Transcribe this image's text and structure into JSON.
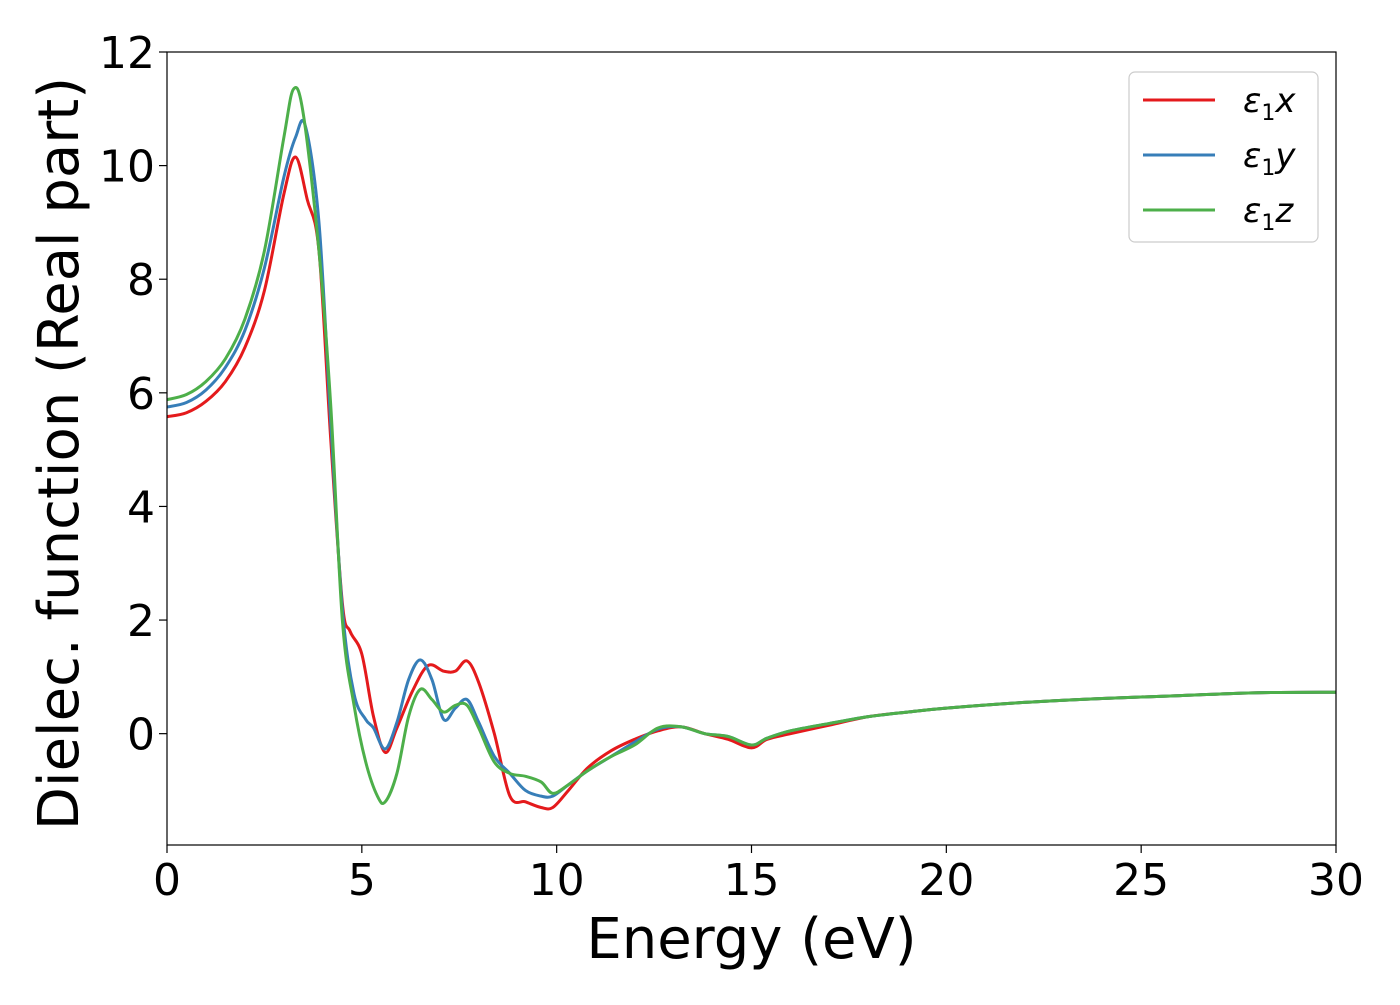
{
  "chart_data": {
    "type": "line",
    "title": "",
    "xlabel": "Energy (eV)",
    "ylabel": "Dielec. function (Real part)",
    "xlim": [
      0,
      30
    ],
    "ylim": [
      -1.96,
      12
    ],
    "xticks": [
      0,
      5,
      10,
      15,
      20,
      25,
      30
    ],
    "yticks": [
      0,
      2,
      4,
      6,
      8,
      10,
      12
    ],
    "grid": false,
    "legend_position": "top-right",
    "series": [
      {
        "name": "ε1x",
        "legend_base": "ε",
        "legend_sub": "1",
        "legend_var": "x",
        "color": "#e41a1c",
        "x": [
          0,
          0.5,
          1,
          1.5,
          2,
          2.5,
          3,
          3.3,
          3.6,
          3.9,
          4.2,
          4.5,
          4.7,
          5.0,
          5.3,
          5.6,
          5.9,
          6.3,
          6.7,
          7.1,
          7.4,
          7.7,
          8.0,
          8.4,
          8.8,
          9.2,
          9.6,
          9.9,
          10.3,
          10.8,
          11.4,
          12.0,
          12.6,
          13.2,
          13.8,
          14.4,
          15.0,
          15.4,
          16.0,
          17.0,
          18.0,
          19.0,
          20.0,
          22.0,
          24.0,
          26.0,
          28.0,
          30.0
        ],
        "y": [
          5.58,
          5.65,
          5.85,
          6.2,
          6.8,
          7.8,
          9.5,
          10.15,
          9.4,
          8.5,
          5.2,
          2.3,
          1.8,
          1.4,
          0.3,
          -0.33,
          0.1,
          0.75,
          1.2,
          1.1,
          1.1,
          1.28,
          0.9,
          0.0,
          -1.1,
          -1.2,
          -1.3,
          -1.3,
          -1.0,
          -0.6,
          -0.3,
          -0.1,
          0.05,
          0.12,
          0.0,
          -0.1,
          -0.25,
          -0.1,
          0.0,
          0.15,
          0.3,
          0.38,
          0.45,
          0.55,
          0.62,
          0.67,
          0.72,
          0.73
        ]
      },
      {
        "name": "ε1y",
        "legend_base": "ε",
        "legend_sub": "1",
        "legend_var": "y",
        "color": "#377eb8",
        "x": [
          0,
          0.5,
          1,
          1.5,
          2,
          2.5,
          3,
          3.3,
          3.55,
          3.9,
          4.2,
          4.5,
          4.8,
          5.1,
          5.3,
          5.6,
          5.9,
          6.2,
          6.5,
          6.8,
          7.1,
          7.4,
          7.7,
          8.0,
          8.4,
          8.8,
          9.2,
          9.6,
          9.9,
          10.3,
          10.8,
          11.4,
          12.0,
          12.6,
          13.2,
          13.8,
          14.4,
          15.0,
          15.4,
          16.0,
          17.0,
          18.0,
          19.0,
          20.0,
          22.0,
          24.0,
          26.0,
          28.0,
          30.0
        ],
        "y": [
          5.75,
          5.83,
          6.05,
          6.45,
          7.1,
          8.2,
          9.8,
          10.5,
          10.7,
          9.0,
          5.5,
          2.2,
          0.7,
          0.25,
          0.1,
          -0.27,
          0.2,
          0.95,
          1.3,
          0.95,
          0.25,
          0.45,
          0.6,
          0.2,
          -0.4,
          -0.7,
          -1.0,
          -1.1,
          -1.1,
          -0.9,
          -0.65,
          -0.4,
          -0.15,
          0.08,
          0.12,
          0.0,
          -0.05,
          -0.2,
          -0.08,
          0.05,
          0.18,
          0.3,
          0.38,
          0.45,
          0.55,
          0.62,
          0.67,
          0.72,
          0.73
        ]
      },
      {
        "name": "ε1z",
        "legend_base": "ε",
        "legend_sub": "1",
        "legend_var": "z",
        "color": "#4daf4a",
        "x": [
          0,
          0.5,
          1,
          1.5,
          2,
          2.5,
          3,
          3.25,
          3.5,
          3.9,
          4.2,
          4.5,
          4.8,
          5.1,
          5.4,
          5.6,
          5.9,
          6.2,
          6.5,
          6.8,
          7.1,
          7.4,
          7.7,
          8.0,
          8.4,
          8.8,
          9.2,
          9.6,
          9.9,
          10.3,
          10.8,
          11.4,
          12.0,
          12.6,
          13.2,
          13.8,
          14.4,
          15.0,
          15.4,
          16.0,
          17.0,
          18.0,
          19.0,
          20.0,
          22.0,
          24.0,
          26.0,
          28.0,
          30.0
        ],
        "y": [
          5.88,
          5.97,
          6.2,
          6.6,
          7.3,
          8.5,
          10.5,
          11.35,
          10.9,
          8.5,
          5.8,
          2.0,
          0.5,
          -0.5,
          -1.1,
          -1.2,
          -0.7,
          0.3,
          0.78,
          0.6,
          0.38,
          0.5,
          0.5,
          0.1,
          -0.5,
          -0.7,
          -0.75,
          -0.85,
          -1.05,
          -0.9,
          -0.65,
          -0.4,
          -0.2,
          0.1,
          0.12,
          0.0,
          -0.05,
          -0.2,
          -0.08,
          0.05,
          0.18,
          0.3,
          0.38,
          0.45,
          0.55,
          0.62,
          0.67,
          0.72,
          0.73
        ]
      }
    ]
  }
}
